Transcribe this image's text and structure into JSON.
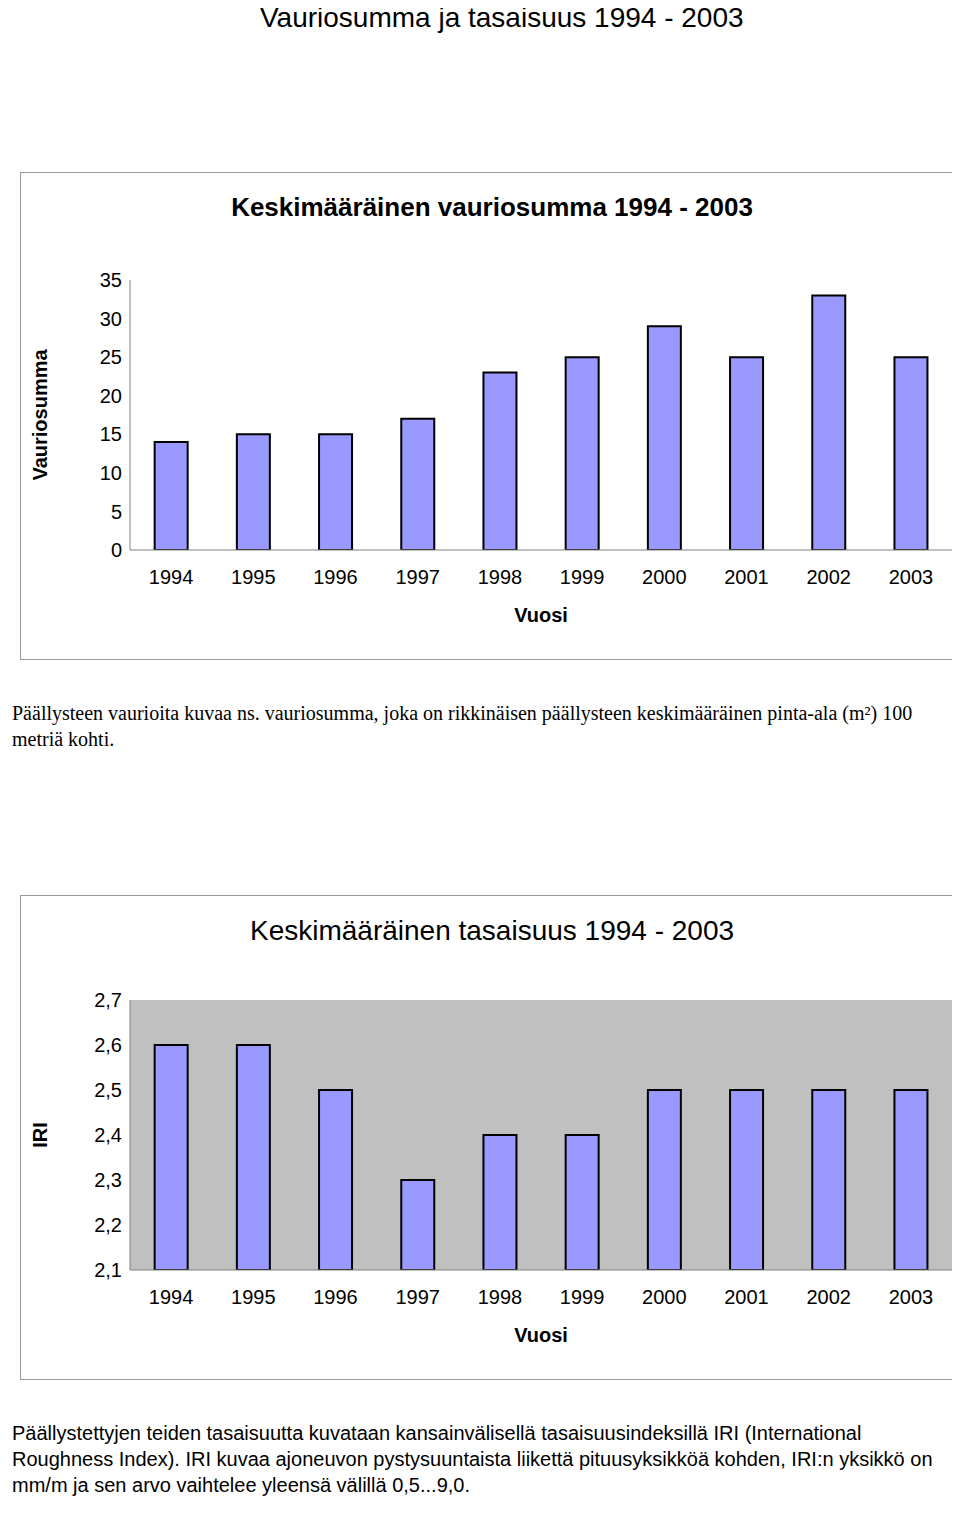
{
  "title": "Vauriosumma ja tasaisuus 1994 - 2003",
  "chart_data": [
    {
      "type": "bar",
      "title": "Keskimääräinen vauriosumma 1994 - 2003",
      "categories": [
        "1994",
        "1995",
        "1996",
        "1997",
        "1998",
        "1999",
        "2000",
        "2001",
        "2002",
        "2003"
      ],
      "values": [
        14,
        15,
        15,
        17,
        23,
        25,
        29,
        25,
        33,
        25
      ],
      "color": "#9999ff",
      "ylim": [
        0,
        35
      ],
      "yticks": [
        0,
        5,
        10,
        15,
        20,
        25,
        30,
        35
      ],
      "grid": false,
      "x_label": "Vuosi",
      "y_label": "Vauriosumma",
      "caption": "Päällysteen vaurioita kuvaa ns. vauriosumma, joka on rikkinäisen päällysteen keskimääräinen pinta-ala (m²) 100 metriä kohti."
    },
    {
      "type": "bar",
      "title": "Keskimääräinen tasaisuus 1994 - 2003",
      "categories": [
        "1994",
        "1995",
        "1996",
        "1997",
        "1998",
        "1999",
        "2000",
        "2001",
        "2002",
        "2003"
      ],
      "values": [
        2.6,
        2.6,
        2.5,
        2.3,
        2.4,
        2.4,
        2.5,
        2.5,
        2.5,
        2.5
      ],
      "color": "#9999ff",
      "ylim": [
        2.1,
        2.7
      ],
      "yticks": [
        {
          "value": 2.1,
          "label": "2,1"
        },
        {
          "value": 2.2,
          "label": "2,2"
        },
        {
          "value": 2.3,
          "label": "2,3"
        },
        {
          "value": 2.4,
          "label": "2,4"
        },
        {
          "value": 2.5,
          "label": "2,5"
        },
        {
          "value": 2.6,
          "label": "2,6"
        },
        {
          "value": 2.7,
          "label": "2,7"
        }
      ],
      "grid": false,
      "x_label": "Vuosi",
      "y_label": "IRI",
      "caption": "Päällystettyjen teiden tasaisuutta kuvataan kansainvälisellä tasaisuusindeksillä IRI (International Roughness Index). IRI kuvaa ajoneuvon pystysuuntaista liikettä pituusyksikköä kohden, IRI:n yksikkö on mm/m ja sen arvo vaihtelee yleensä välillä 0,5...9,0."
    }
  ]
}
